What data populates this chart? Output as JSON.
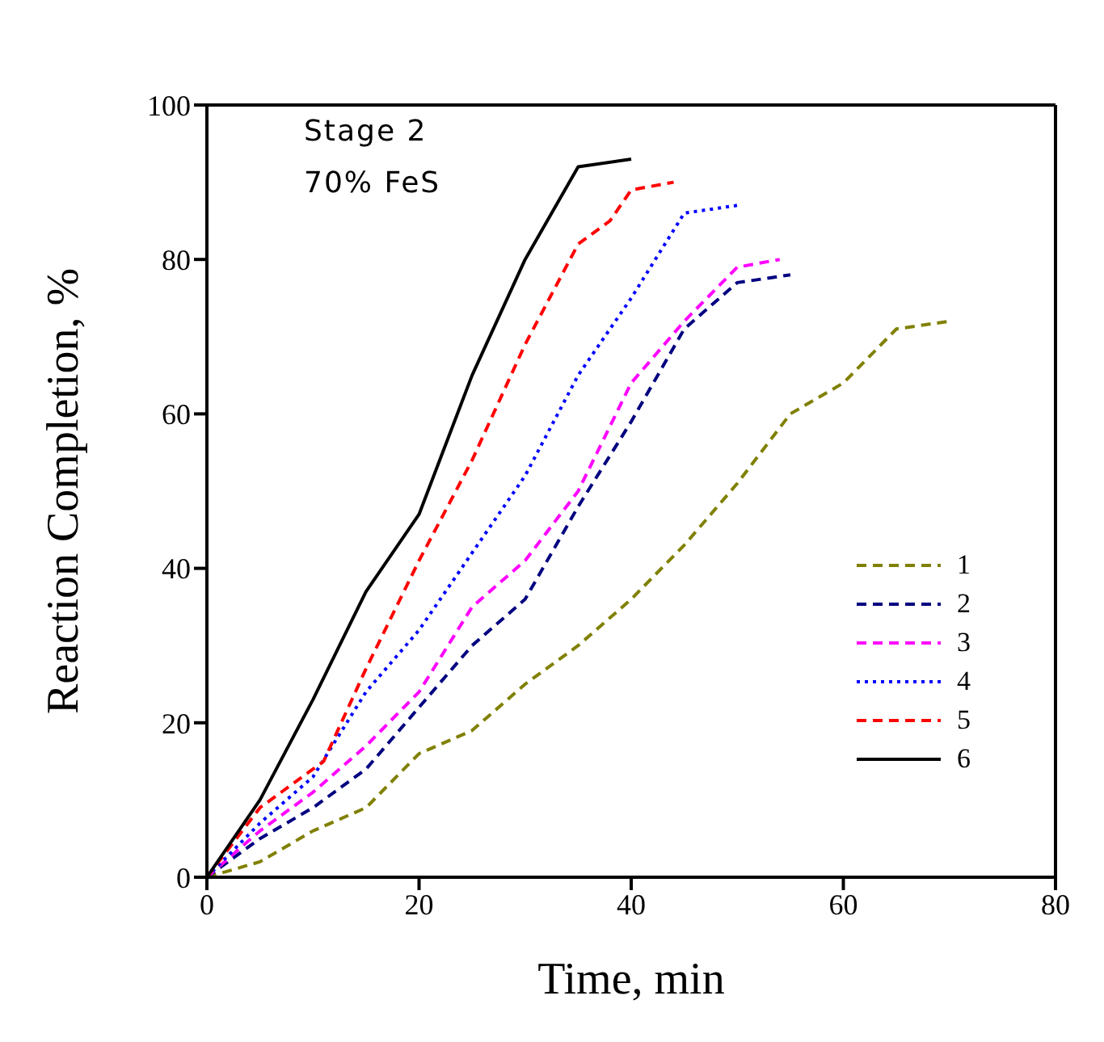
{
  "chart_data": {
    "type": "line",
    "xlabel": "Time, min",
    "ylabel": "Reaction Completion, %",
    "annotations": [
      "Stage 2",
      "70% FeS"
    ],
    "xlim": [
      0,
      80
    ],
    "xticks": [
      0,
      20,
      40,
      60,
      80
    ],
    "ylim": [
      0,
      100
    ],
    "yticks": [
      0,
      20,
      40,
      60,
      80,
      100
    ],
    "legend": "right",
    "marker": "none",
    "series": [
      {
        "name": "1",
        "color": "#808000",
        "line_style": "dashed",
        "x": [
          0,
          5,
          10,
          15,
          20,
          25,
          30,
          35,
          40,
          45,
          50,
          55,
          60,
          65,
          70
        ],
        "values": [
          0,
          2,
          6,
          9,
          16,
          19,
          25,
          30,
          36,
          43,
          51,
          60,
          64,
          71,
          72
        ]
      },
      {
        "name": "2",
        "color": "#000080",
        "line_style": "dashed",
        "x": [
          0,
          5,
          10,
          15,
          20,
          25,
          30,
          35,
          40,
          45,
          50,
          55
        ],
        "values": [
          0,
          5,
          9,
          14,
          22,
          30,
          36,
          48,
          59,
          71,
          77,
          78
        ]
      },
      {
        "name": "3",
        "color": "#ff00ff",
        "line_style": "dashed",
        "x": [
          0,
          5,
          10,
          15,
          20,
          25,
          30,
          35,
          40,
          45,
          50,
          54
        ],
        "values": [
          0,
          6,
          11,
          17,
          24,
          35,
          41,
          50,
          64,
          72,
          79,
          80
        ]
      },
      {
        "name": "4",
        "color": "#0000ff",
        "line_style": "dotted",
        "x": [
          0,
          5,
          10,
          15,
          20,
          25,
          30,
          35,
          40,
          45,
          50
        ],
        "values": [
          0,
          7,
          13,
          24,
          32,
          42,
          52,
          65,
          75,
          86,
          87
        ]
      },
      {
        "name": "5",
        "color": "#ff0000",
        "line_style": "dashed",
        "x": [
          0,
          5,
          10,
          11,
          15,
          20,
          25,
          30,
          35,
          38,
          40,
          44
        ],
        "values": [
          0,
          9,
          14,
          15,
          27,
          41,
          54,
          69,
          82,
          85,
          89,
          90
        ]
      },
      {
        "name": "6",
        "color": "#000000",
        "line_style": "solid",
        "x": [
          0,
          5,
          10,
          15,
          20,
          25,
          30,
          35,
          40
        ],
        "values": [
          0,
          10,
          23,
          37,
          47,
          65,
          80,
          92,
          93
        ]
      }
    ]
  }
}
